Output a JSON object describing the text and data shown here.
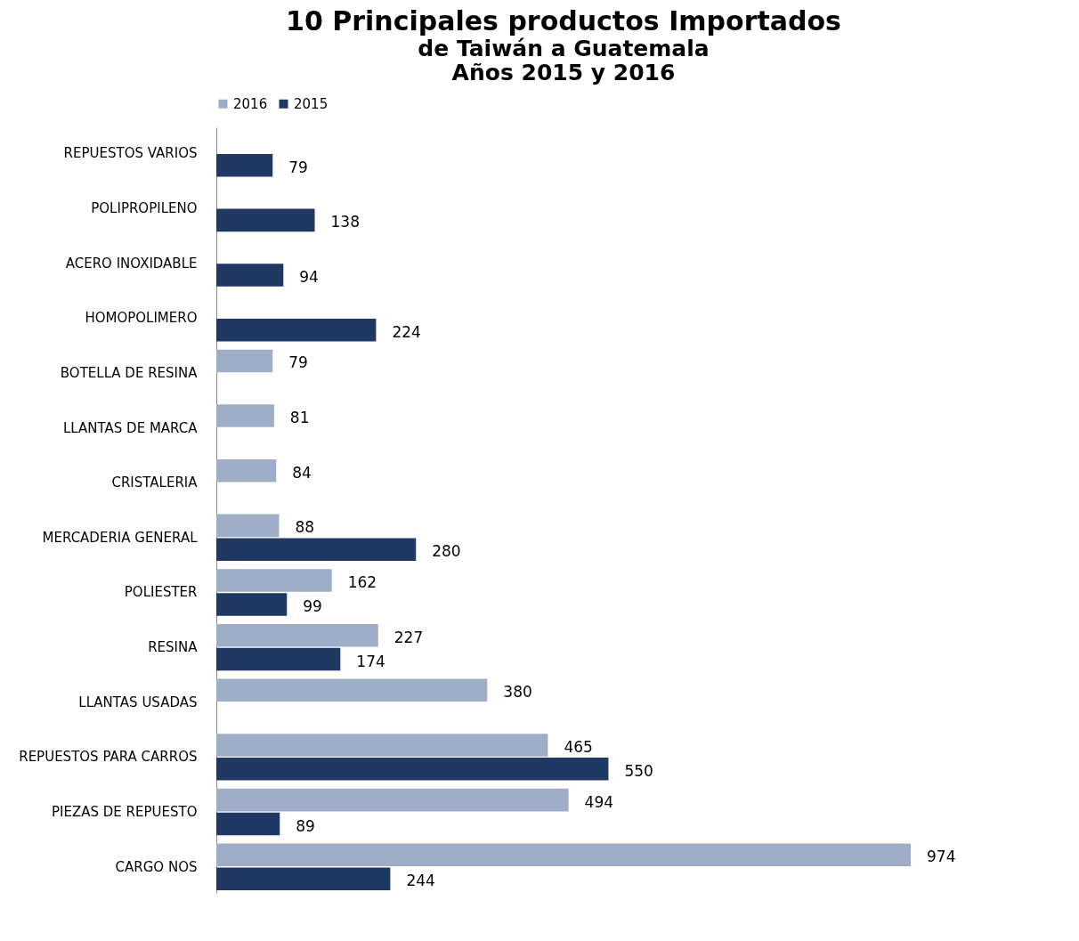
{
  "chart_data": {
    "type": "bar",
    "orientation": "horizontal",
    "title": "10 Principales productos Importados",
    "subtitle": "de Taiwán a Guatemala\nAños 2015 y 2016",
    "categories": [
      "REPUESTOS VARIOS",
      "POLIPROPILENO",
      "ACERO INOXIDABLE",
      "HOMOPOLIMERO",
      "BOTELLA DE RESINA",
      "LLANTAS DE MARCA",
      "CRISTALERIA",
      "MERCADERIA GENERAL",
      "POLIESTER",
      "RESINA",
      "LLANTAS USADAS",
      "REPUESTOS PARA CARROS",
      "PIEZAS DE REPUESTO",
      "CARGO NOS"
    ],
    "series": [
      {
        "name": "2016",
        "color": "#9eadc8",
        "values": [
          null,
          null,
          null,
          null,
          79,
          81,
          84,
          88,
          162,
          227,
          380,
          465,
          494,
          974
        ]
      },
      {
        "name": "2015",
        "color": "#1f3864",
        "values": [
          79,
          138,
          94,
          224,
          null,
          null,
          null,
          280,
          99,
          174,
          null,
          550,
          89,
          244
        ]
      }
    ],
    "data_labels": true,
    "legend": "top",
    "grid": false
  }
}
